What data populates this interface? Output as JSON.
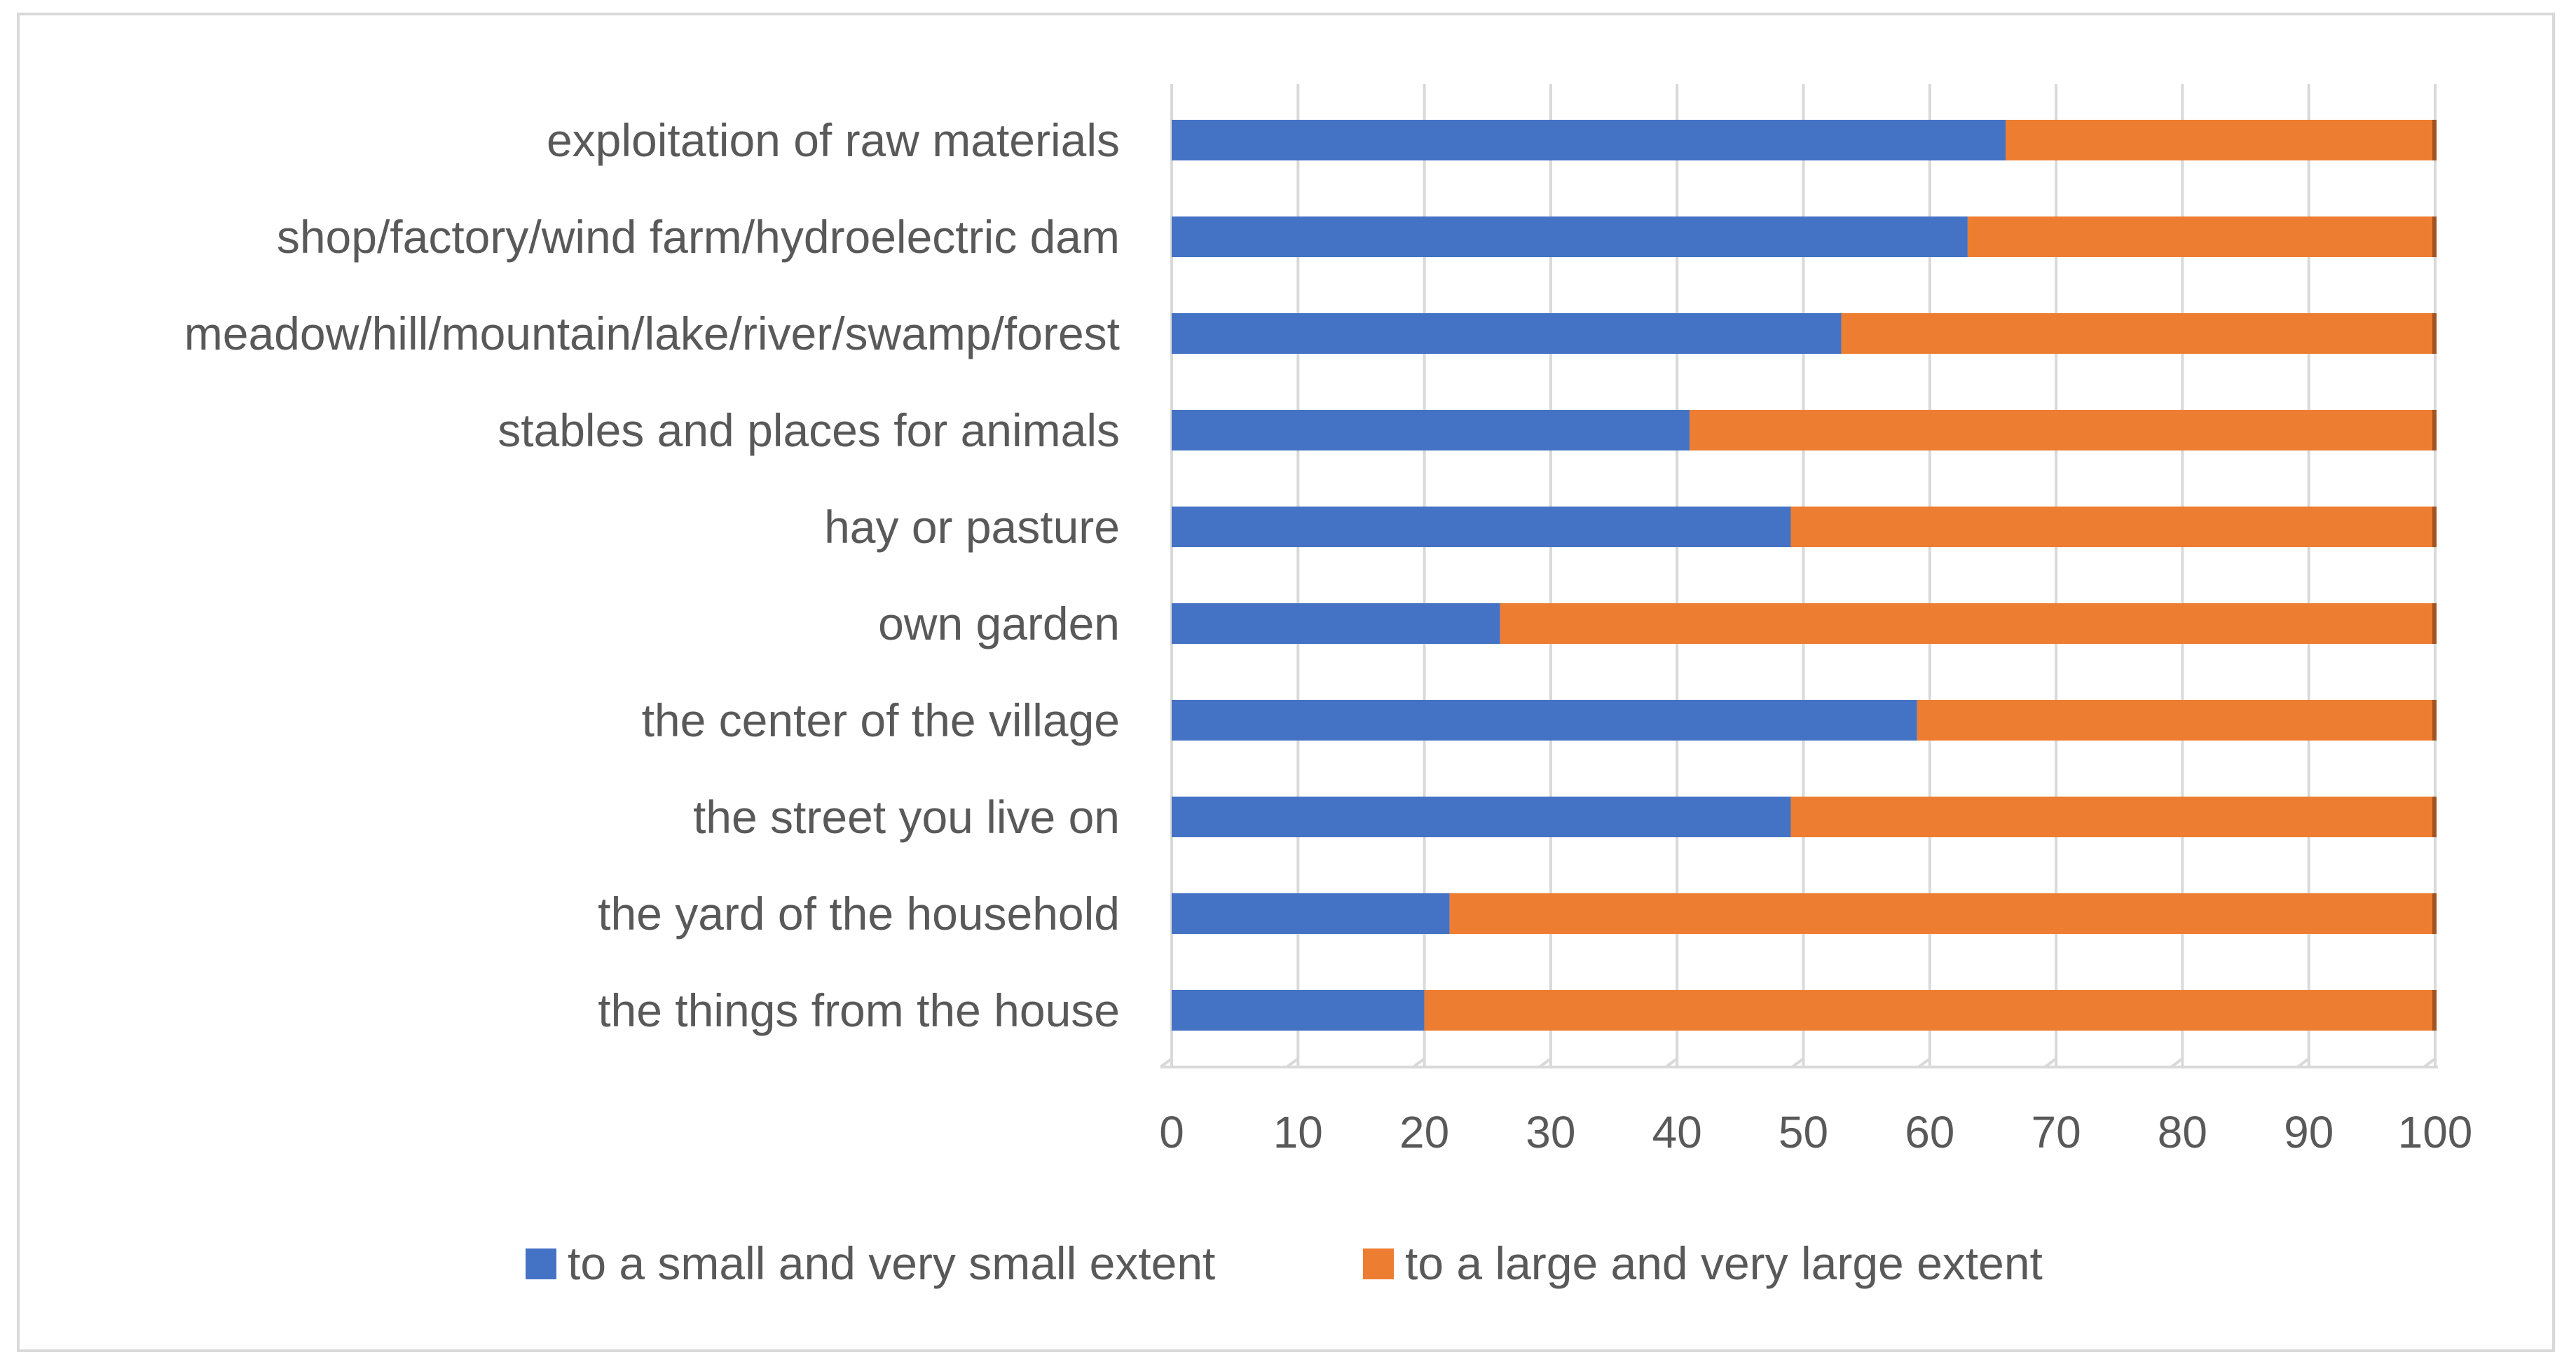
{
  "chart_data": {
    "type": "bar",
    "orientation": "horizontal",
    "stacked": true,
    "title": "",
    "xlabel": "",
    "ylabel": "",
    "xlim": [
      0,
      100
    ],
    "xticks": [
      "0",
      "10",
      "20",
      "30",
      "40",
      "50",
      "60",
      "70",
      "80",
      "90",
      "100"
    ],
    "grid": true,
    "legend_position": "bottom",
    "categories": [
      "exploitation of raw materials",
      "shop/factory/wind farm/hydroelectric dam",
      "meadow/hill/mountain/lake/river/swamp/forest",
      "stables and places for animals",
      "hay or pasture",
      "own garden",
      "the center of the village",
      "the street you live on",
      "the yard of the household",
      "the things from the house"
    ],
    "series": [
      {
        "name": "to a small and very small extent",
        "color": "#4472C4",
        "values": [
          66,
          63,
          53,
          41,
          49,
          26,
          59,
          49,
          22,
          20
        ]
      },
      {
        "name": "to a large and very large extent",
        "color": "#ED7D31",
        "values": [
          34,
          37,
          47,
          59,
          51,
          74,
          41,
          51,
          78,
          80
        ]
      }
    ]
  }
}
